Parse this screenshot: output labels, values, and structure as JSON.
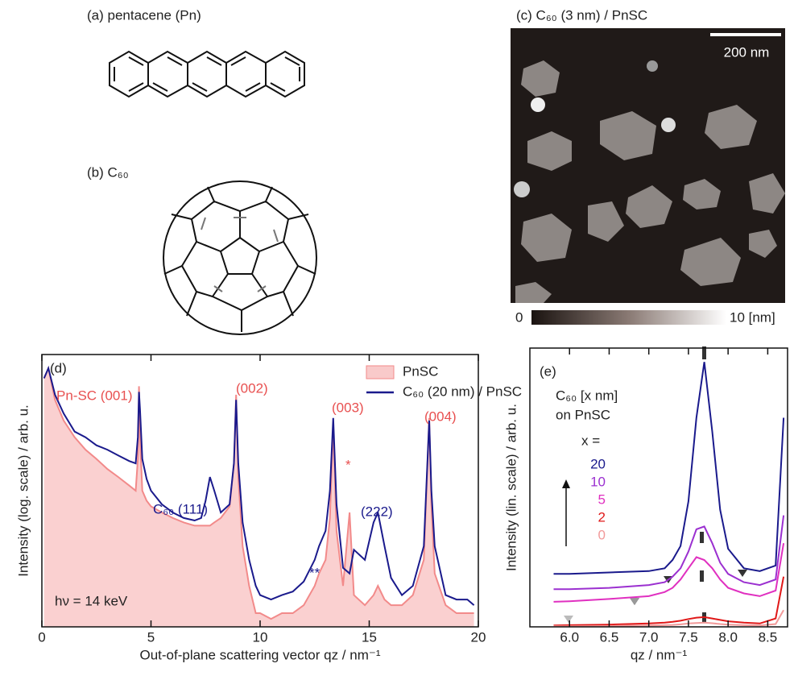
{
  "figure": {
    "panel_a": "(a) pentacene (Pn)",
    "panel_b": "(b) C₆₀",
    "panel_c": "(c) C₆₀ (3 nm) / PnSC",
    "scale_bar": "200 nm",
    "colorbar_min": "0",
    "colorbar_max": "10 [nm]"
  },
  "chart_data": [
    {
      "type": "line",
      "panel": "(d)",
      "log_y": true,
      "x_label": "Out-of-plane scattering vector qz / nm⁻¹",
      "y_label": "Intensity (log. scale) / arb. u.",
      "xlim": [
        0,
        20
      ],
      "xticks": [
        0,
        5,
        10,
        15,
        20
      ],
      "ylim": [
        1,
        1000000
      ],
      "annotations": [
        "Pn-SC (001)",
        "(002)",
        "(003)",
        "(004)",
        "C₆₀ (111)",
        "(222)",
        "*",
        "**",
        "hν = 14 keV"
      ],
      "x": [
        0.1,
        0.3,
        0.6,
        1,
        1.5,
        2,
        2.5,
        3,
        3.5,
        4,
        4.3,
        4.4,
        4.45,
        4.5,
        4.6,
        4.8,
        5,
        5.5,
        6,
        6.5,
        7,
        7.3,
        7.5,
        7.7,
        7.9,
        8.2,
        8.6,
        8.8,
        8.9,
        9.0,
        9.2,
        9.5,
        9.8,
        10,
        10.5,
        11,
        11.5,
        12,
        12.5,
        12.7,
        13,
        13.2,
        13.35,
        13.5,
        13.8,
        14.1,
        14.3,
        14.8,
        15.2,
        15.4,
        15.7,
        16,
        16.5,
        17,
        17.5,
        17.75,
        17.85,
        18,
        18.5,
        19,
        19.5,
        19.8
      ],
      "series": [
        {
          "name": "PnSC",
          "color": "#f28a8a",
          "fill": true,
          "values": [
            300000,
            500000,
            100000,
            35000,
            15000,
            8000,
            5000,
            3000,
            2000,
            1300,
            1000,
            5000,
            200000,
            15000,
            1000,
            600,
            450,
            330,
            250,
            200,
            170,
            170,
            170,
            170,
            200,
            250,
            450,
            4000,
            130000,
            2000,
            60,
            8,
            2,
            2,
            1.5,
            2,
            2,
            3,
            8,
            15,
            30,
            250,
            30000,
            130,
            8,
            330,
            5,
            3,
            5,
            8,
            4,
            3,
            3,
            5,
            30,
            40000,
            500,
            15,
            3,
            2,
            2,
            2
          ]
        },
        {
          "name": "C₆₀ (20 nm) / PnSC",
          "color": "#1a1a8c",
          "fill": false,
          "values": [
            300000,
            500000,
            130000,
            50000,
            20000,
            15000,
            10000,
            8000,
            6000,
            4500,
            4000,
            15000,
            150000,
            60000,
            5000,
            1800,
            1000,
            500,
            330,
            250,
            220,
            250,
            600,
            2000,
            1000,
            330,
            500,
            4000,
            100000,
            4000,
            200,
            30,
            8,
            5,
            4,
            5,
            6,
            10,
            30,
            60,
            130,
            1000,
            40000,
            500,
            20,
            15,
            50,
            30,
            200,
            330,
            60,
            12,
            5,
            8,
            60,
            35000,
            1000,
            60,
            5,
            4,
            4,
            3
          ]
        }
      ]
    },
    {
      "type": "line",
      "panel": "(e)",
      "x_label": "qz / nm⁻¹",
      "y_label": "Intensity (lin. scale) / arb. u.",
      "legend_title": "C₆₀ [x nm]",
      "legend_subtitle": "on PnSC",
      "legend_var": "x =",
      "xlim": [
        5.5,
        8.75
      ],
      "xticks": [
        {
          "value": 6,
          "label": "6.0"
        },
        {
          "value": 6.5,
          "label": "6.5"
        },
        {
          "value": 7,
          "label": "7.0"
        },
        {
          "value": 7.5,
          "label": "7.5"
        },
        {
          "value": 8,
          "label": "8.0"
        },
        {
          "value": 8.5,
          "label": "8.5"
        }
      ],
      "ylim": [
        0,
        10
      ],
      "x": [
        5.8,
        6.0,
        6.5,
        7.0,
        7.2,
        7.3,
        7.4,
        7.5,
        7.6,
        7.7,
        7.8,
        7.9,
        8.0,
        8.2,
        8.4,
        8.6,
        8.7
      ],
      "series": [
        {
          "name": "20",
          "color": "#1a1a8c",
          "values": [
            1.9,
            1.9,
            1.95,
            2.0,
            2.1,
            2.4,
            2.9,
            4.5,
            7.5,
            9.5,
            7.0,
            4.2,
            2.8,
            2.1,
            2.0,
            2.2,
            7.5
          ]
        },
        {
          "name": "10",
          "color": "#9b30d0",
          "values": [
            1.35,
            1.35,
            1.4,
            1.5,
            1.6,
            1.8,
            2.1,
            2.7,
            3.5,
            3.6,
            3.0,
            2.3,
            1.9,
            1.6,
            1.5,
            1.7,
            4.0
          ]
        },
        {
          "name": "5",
          "color": "#e030c0",
          "values": [
            0.9,
            0.92,
            1.0,
            1.1,
            1.25,
            1.4,
            1.7,
            2.1,
            2.5,
            2.4,
            2.1,
            1.7,
            1.4,
            1.2,
            1.1,
            1.3,
            3.0
          ]
        },
        {
          "name": "2",
          "color": "#e01818",
          "values": [
            0.05,
            0.06,
            0.08,
            0.12,
            0.15,
            0.18,
            0.22,
            0.28,
            0.33,
            0.35,
            0.3,
            0.25,
            0.2,
            0.15,
            0.12,
            0.3,
            1.8
          ]
        },
        {
          "name": "0",
          "color": "#f29a9a",
          "values": [
            0.02,
            0.02,
            0.03,
            0.05,
            0.06,
            0.07,
            0.09,
            0.12,
            0.14,
            0.15,
            0.13,
            0.1,
            0.08,
            0.06,
            0.05,
            0.1,
            0.6
          ]
        }
      ]
    }
  ]
}
